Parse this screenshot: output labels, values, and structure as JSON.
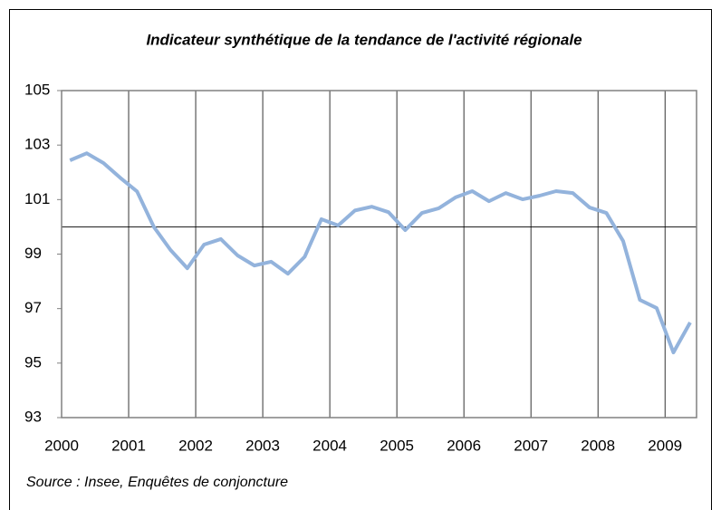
{
  "chart_data": {
    "type": "line",
    "title": "Indicateur synthétique de la tendance de l'activité régionale",
    "source": "Source : Insee, Enquêtes de conjoncture",
    "x": [
      2000.125,
      2000.375,
      2000.625,
      2000.875,
      2001.125,
      2001.375,
      2001.625,
      2001.875,
      2002.125,
      2002.375,
      2002.625,
      2002.875,
      2003.125,
      2003.375,
      2003.625,
      2003.875,
      2004.125,
      2004.375,
      2004.625,
      2004.875,
      2005.125,
      2005.375,
      2005.625,
      2005.875,
      2006.125,
      2006.375,
      2006.625,
      2006.875,
      2007.125,
      2007.375,
      2007.625,
      2007.875,
      2008.125,
      2008.375,
      2008.625,
      2008.875,
      2009.125,
      2009.375
    ],
    "series": [
      {
        "color": "#93b3dc",
        "values": [
          102.44,
          102.7,
          102.34,
          101.8,
          101.3,
          100.0,
          99.15,
          98.48,
          99.35,
          99.55,
          98.95,
          98.58,
          98.72,
          98.28,
          98.9,
          100.28,
          100.05,
          100.6,
          100.74,
          100.54,
          99.88,
          100.51,
          100.68,
          101.08,
          101.31,
          100.94,
          101.24,
          101.01,
          101.14,
          101.31,
          101.24,
          100.71,
          100.51,
          99.48,
          97.32,
          97.02,
          95.39,
          96.49
        ]
      }
    ],
    "xlim": [
      2000,
      2009.47
    ],
    "xticks": [
      2000,
      2001,
      2002,
      2003,
      2004,
      2005,
      2006,
      2007,
      2008,
      2009
    ],
    "ylim": [
      93,
      105
    ],
    "yticks": [
      93,
      95,
      97,
      99,
      101,
      103,
      105
    ],
    "reference_line": 100,
    "grid": true
  }
}
